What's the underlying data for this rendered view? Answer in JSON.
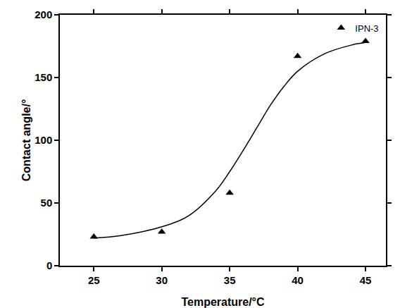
{
  "chart_data": {
    "type": "scatter",
    "x_label": "Temperature/°C",
    "y_label": "Contact angle/°",
    "xlim": [
      22.5,
      46.5
    ],
    "xticks": [
      25,
      30,
      35,
      40,
      45
    ],
    "ylim": [
      0,
      200
    ],
    "yticks": [
      0,
      50,
      100,
      150,
      200
    ],
    "grid": false,
    "legend": "upper right",
    "series": [
      {
        "name": "IPN-3",
        "type": "scatter",
        "marker": "triangle",
        "color": "#000000",
        "x": [
          25,
          30,
          35,
          40,
          45
        ],
        "values": [
          23,
          27,
          58,
          167,
          179
        ]
      },
      {
        "type": "line",
        "line_style": "solid",
        "color": "#000000",
        "x": [
          25,
          27,
          30,
          32,
          34,
          35,
          36,
          37,
          38,
          39,
          40,
          42,
          44,
          45
        ],
        "values": [
          22,
          24,
          31,
          40,
          60,
          75,
          92,
          110,
          128,
          143,
          155,
          169,
          176,
          178
        ]
      }
    ]
  }
}
